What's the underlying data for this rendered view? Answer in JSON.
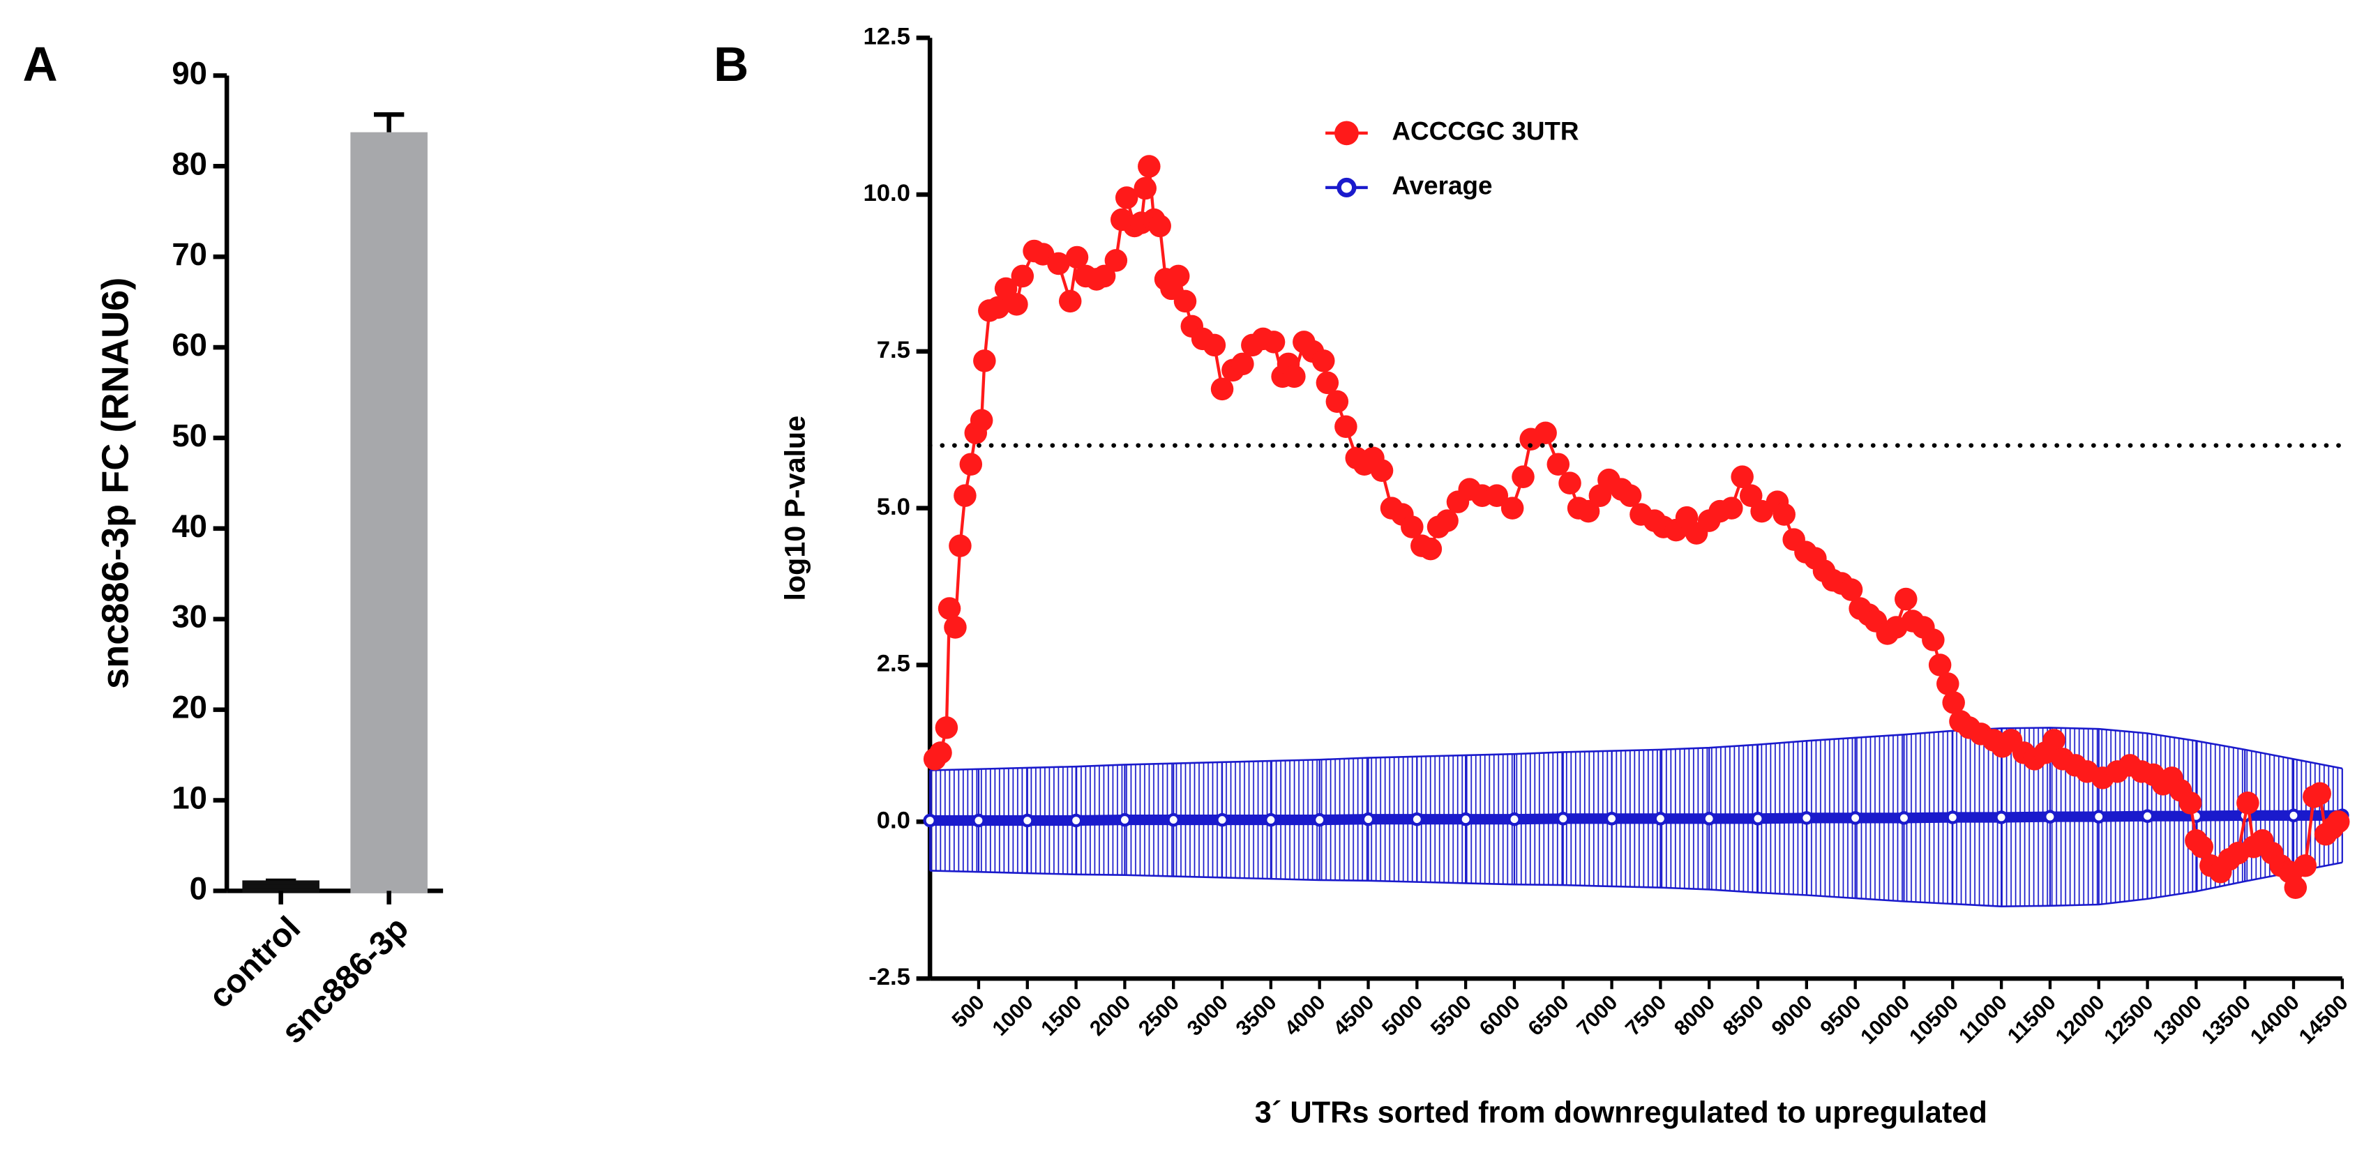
{
  "chart_data": [
    {
      "type": "bar",
      "panel": "A",
      "ylabel": "snc886-3p FC (RNAU6)",
      "categories": [
        "control",
        "snc886-3p"
      ],
      "values": [
        0.9,
        83.5
      ],
      "errors": [
        0.2,
        2.2
      ],
      "colors": [
        "#111111",
        "#a7a8ab"
      ],
      "ylim": [
        0,
        90
      ],
      "yticks": [
        0,
        10,
        20,
        30,
        40,
        50,
        60,
        70,
        80,
        90
      ]
    },
    {
      "type": "line",
      "panel": "B",
      "xlabel": "3´ UTRs sorted from downregulated to upregulated",
      "ylabel": "log10 P-value",
      "xlim": [
        0,
        14500
      ],
      "xticks": [
        500,
        1000,
        1500,
        2000,
        2500,
        3000,
        3500,
        4000,
        4500,
        5000,
        5500,
        6000,
        6500,
        7000,
        7500,
        8000,
        8500,
        9000,
        9500,
        10000,
        10500,
        11000,
        11500,
        12000,
        12500,
        13000,
        13500,
        14000,
        14500
      ],
      "ylim": [
        -2.5,
        12.5
      ],
      "yticks": [
        -2.5,
        {
          "value": 0,
          "label": "0.0"
        },
        2.5,
        {
          "value": 5,
          "label": "5.0"
        },
        7.5,
        {
          "value": 10,
          "label": "10.0"
        },
        12.5
      ],
      "hline": 6,
      "legend": "upper center",
      "series": [
        {
          "name": "ACCCGC 3UTR",
          "color": "#ff1a1a",
          "x": [
            50,
            110,
            170,
            200,
            260,
            310,
            360,
            420,
            470,
            530,
            560,
            610,
            700,
            780,
            890,
            950,
            1070,
            1160,
            1320,
            1440,
            1510,
            1600,
            1710,
            1790,
            1910,
            1970,
            2020,
            2100,
            2170,
            2210,
            2250,
            2300,
            2360,
            2420,
            2480,
            2550,
            2620,
            2690,
            2800,
            2920,
            3000,
            3110,
            3210,
            3310,
            3420,
            3530,
            3620,
            3680,
            3740,
            3840,
            3930,
            4040,
            4080,
            4180,
            4270,
            4380,
            4460,
            4550,
            4640,
            4740,
            4850,
            4950,
            5050,
            5140,
            5220,
            5310,
            5420,
            5540,
            5670,
            5820,
            5980,
            6090,
            6170,
            6320,
            6450,
            6570,
            6660,
            6760,
            6880,
            6970,
            7100,
            7190,
            7300,
            7440,
            7530,
            7660,
            7770,
            7870,
            8000,
            8110,
            8230,
            8340,
            8430,
            8540,
            8700,
            8770,
            8870,
            8990,
            9090,
            9180,
            9270,
            9360,
            9460,
            9550,
            9640,
            9710,
            9830,
            9920,
            10020,
            10090,
            10200,
            10300,
            10370,
            10450,
            10510,
            10580,
            10670,
            10790,
            10920,
            11010,
            11100,
            11230,
            11340,
            11450,
            11540,
            11630,
            11760,
            11880,
            12040,
            12190,
            12320,
            12440,
            12560,
            12660,
            12750,
            12840,
            12940,
            13000,
            13060,
            13150,
            13250,
            13340,
            13430,
            13530,
            13590,
            13680,
            13780,
            13870,
            13960,
            14020,
            14120,
            14210,
            14270,
            14330,
            14400,
            14460
          ],
          "values": [
            1.0,
            1.1,
            1.5,
            3.4,
            3.1,
            4.4,
            5.2,
            5.7,
            6.2,
            6.4,
            7.35,
            8.15,
            8.2,
            8.5,
            8.25,
            8.7,
            9.1,
            9.05,
            8.9,
            8.3,
            9.0,
            8.7,
            8.65,
            8.7,
            8.95,
            9.6,
            9.95,
            9.5,
            9.55,
            10.1,
            10.45,
            9.6,
            9.5,
            8.65,
            8.5,
            8.7,
            8.3,
            7.9,
            7.7,
            7.6,
            6.9,
            7.2,
            7.3,
            7.6,
            7.7,
            7.65,
            7.1,
            7.3,
            7.1,
            7.65,
            7.5,
            7.35,
            7.0,
            6.7,
            6.3,
            5.8,
            5.7,
            5.8,
            5.6,
            5.0,
            4.9,
            4.7,
            4.4,
            4.35,
            4.7,
            4.8,
            5.1,
            5.3,
            5.2,
            5.2,
            5.0,
            5.5,
            6.1,
            6.2,
            5.7,
            5.4,
            5.0,
            4.95,
            5.2,
            5.45,
            5.3,
            5.2,
            4.9,
            4.8,
            4.7,
            4.65,
            4.85,
            4.6,
            4.8,
            4.95,
            5.0,
            5.5,
            5.2,
            4.95,
            5.1,
            4.9,
            4.5,
            4.3,
            4.2,
            4.0,
            3.85,
            3.8,
            3.7,
            3.4,
            3.3,
            3.2,
            3.0,
            3.1,
            3.55,
            3.2,
            3.1,
            2.9,
            2.5,
            2.2,
            1.9,
            1.6,
            1.5,
            1.4,
            1.3,
            1.2,
            1.3,
            1.1,
            1.0,
            1.1,
            1.3,
            1.0,
            0.9,
            0.8,
            0.7,
            0.8,
            0.9,
            0.8,
            0.75,
            0.6,
            0.7,
            0.5,
            0.3,
            -0.3,
            -0.4,
            -0.7,
            -0.8,
            -0.6,
            -0.5,
            0.3,
            -0.4,
            -0.3,
            -0.5,
            -0.7,
            -0.8,
            -1.05,
            -0.7,
            0.4,
            0.45,
            -0.2,
            -0.1,
            0.0
          ]
        },
        {
          "name": "Average",
          "color": "#1a1acc",
          "x": [
            0,
            500,
            1000,
            1500,
            2000,
            2500,
            3000,
            3500,
            4000,
            4500,
            5000,
            5500,
            6000,
            6500,
            7000,
            7500,
            8000,
            8500,
            9000,
            9500,
            10000,
            10500,
            11000,
            11500,
            12000,
            12500,
            13000,
            13500,
            14000,
            14500
          ],
          "values": [
            0.02,
            0.02,
            0.02,
            0.02,
            0.03,
            0.03,
            0.03,
            0.03,
            0.03,
            0.04,
            0.04,
            0.04,
            0.04,
            0.05,
            0.05,
            0.05,
            0.05,
            0.05,
            0.06,
            0.06,
            0.06,
            0.07,
            0.07,
            0.08,
            0.08,
            0.09,
            0.09,
            0.1,
            0.1,
            0.1
          ],
          "errors": [
            0.8,
            0.82,
            0.84,
            0.86,
            0.88,
            0.9,
            0.92,
            0.94,
            0.96,
            0.98,
            1.0,
            1.02,
            1.04,
            1.06,
            1.08,
            1.1,
            1.13,
            1.18,
            1.23,
            1.28,
            1.33,
            1.38,
            1.42,
            1.42,
            1.4,
            1.32,
            1.2,
            1.05,
            0.9,
            0.75
          ]
        }
      ]
    }
  ]
}
